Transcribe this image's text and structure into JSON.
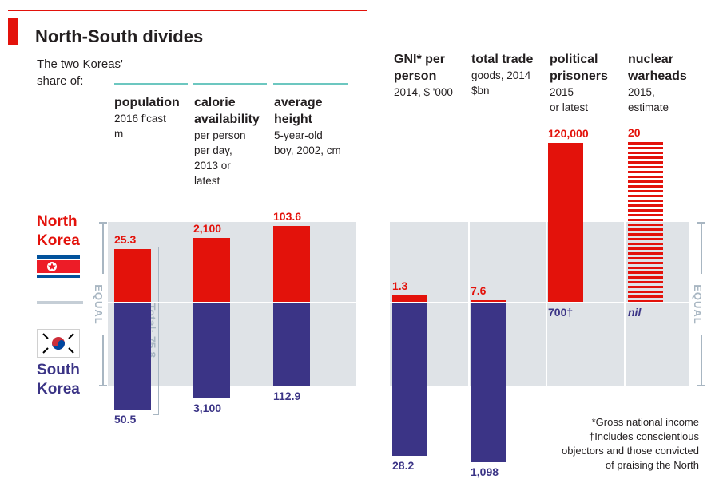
{
  "title": "North-South divides",
  "intro": "The two Koreas'\nshare of:",
  "countries": {
    "north": "North\nKorea",
    "south": "South\nKorea"
  },
  "equal_label": "EQUAL",
  "total_label": "Total: 75.8",
  "colors": {
    "north": "#e3120b",
    "south": "#3b3486",
    "band": "#dfe3e7",
    "equal_axis": "#a8b6c2",
    "heading_rule": "#6cc7c0"
  },
  "icons": {
    "north_flag": "north-korea-flag-icon",
    "south_flag": "south-korea-flag-icon"
  },
  "footnotes": "*Gross national income\n†Includes conscientious\nobjectors and those convicted\nof praising the North",
  "chart_data": [
    {
      "type": "bar",
      "panel": "left",
      "categories": [
        "population",
        "calorie availability",
        "average height"
      ],
      "category_headers": [
        "population",
        "calorie\navailability",
        "average\nheight"
      ],
      "category_units": [
        "2016 f'cast\nm",
        "per person\nper day,\n2013 or\nlatest",
        "5-year-old\nboy, 2002, cm"
      ],
      "series": [
        {
          "name": "North Korea",
          "values": [
            25.3,
            2100,
            103.6
          ],
          "labels": [
            "25.3",
            "2,100",
            "103.6"
          ]
        },
        {
          "name": "South Korea",
          "values": [
            50.5,
            3100,
            112.9
          ],
          "labels": [
            "50.5",
            "3,100",
            "112.9"
          ]
        }
      ],
      "scale": "share of combined total; equal share marked"
    },
    {
      "type": "bar",
      "panel": "right",
      "categories": [
        "GNI per person",
        "total trade",
        "political prisoners",
        "nuclear warheads"
      ],
      "category_headers": [
        "GNI* per\nperson",
        "total trade",
        "political\nprisoners",
        "nuclear\nwarheads"
      ],
      "category_units": [
        "2014, $ '000",
        "goods, 2014\n$bn",
        "2015\nor latest",
        "2015,\nestimate"
      ],
      "series": [
        {
          "name": "North Korea",
          "values": [
            1.3,
            7.6,
            120000,
            20
          ],
          "labels": [
            "1.3",
            "7.6",
            "120,000",
            "20"
          ]
        },
        {
          "name": "South Korea",
          "values": [
            28.2,
            1098,
            700,
            0
          ],
          "labels": [
            "28.2",
            "1,098",
            "700†",
            "nil"
          ]
        }
      ],
      "scale": "share of combined total; equal share marked"
    }
  ]
}
